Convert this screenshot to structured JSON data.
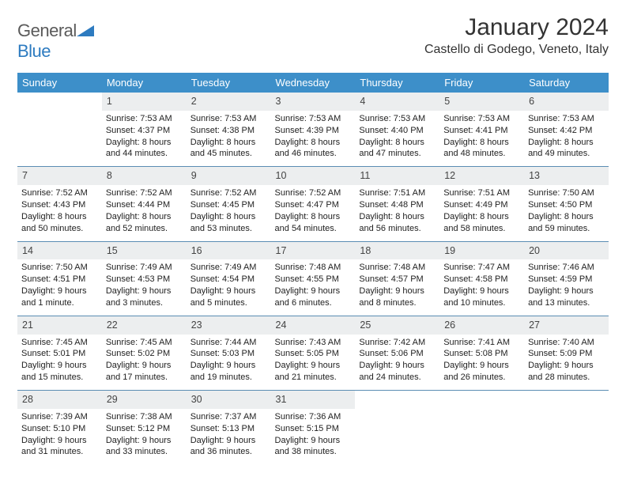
{
  "brand": {
    "name1": "General",
    "name2": "Blue"
  },
  "title": "January 2024",
  "location": "Castello di Godego, Veneto, Italy",
  "colors": {
    "header_bg": "#3d8fc9",
    "daynum_bg": "#eceeef",
    "rule": "#5b8db3"
  },
  "fonts": {
    "title_size": 30,
    "location_size": 16,
    "th_size": 13,
    "cell_size": 11
  },
  "days": [
    "Sunday",
    "Monday",
    "Tuesday",
    "Wednesday",
    "Thursday",
    "Friday",
    "Saturday"
  ],
  "weeks": [
    {
      "nums": [
        "",
        "1",
        "2",
        "3",
        "4",
        "5",
        "6"
      ],
      "cells": [
        null,
        {
          "sr": "Sunrise: 7:53 AM",
          "ss": "Sunset: 4:37 PM",
          "dl": "Daylight: 8 hours and 44 minutes."
        },
        {
          "sr": "Sunrise: 7:53 AM",
          "ss": "Sunset: 4:38 PM",
          "dl": "Daylight: 8 hours and 45 minutes."
        },
        {
          "sr": "Sunrise: 7:53 AM",
          "ss": "Sunset: 4:39 PM",
          "dl": "Daylight: 8 hours and 46 minutes."
        },
        {
          "sr": "Sunrise: 7:53 AM",
          "ss": "Sunset: 4:40 PM",
          "dl": "Daylight: 8 hours and 47 minutes."
        },
        {
          "sr": "Sunrise: 7:53 AM",
          "ss": "Sunset: 4:41 PM",
          "dl": "Daylight: 8 hours and 48 minutes."
        },
        {
          "sr": "Sunrise: 7:53 AM",
          "ss": "Sunset: 4:42 PM",
          "dl": "Daylight: 8 hours and 49 minutes."
        }
      ]
    },
    {
      "nums": [
        "7",
        "8",
        "9",
        "10",
        "11",
        "12",
        "13"
      ],
      "cells": [
        {
          "sr": "Sunrise: 7:52 AM",
          "ss": "Sunset: 4:43 PM",
          "dl": "Daylight: 8 hours and 50 minutes."
        },
        {
          "sr": "Sunrise: 7:52 AM",
          "ss": "Sunset: 4:44 PM",
          "dl": "Daylight: 8 hours and 52 minutes."
        },
        {
          "sr": "Sunrise: 7:52 AM",
          "ss": "Sunset: 4:45 PM",
          "dl": "Daylight: 8 hours and 53 minutes."
        },
        {
          "sr": "Sunrise: 7:52 AM",
          "ss": "Sunset: 4:47 PM",
          "dl": "Daylight: 8 hours and 54 minutes."
        },
        {
          "sr": "Sunrise: 7:51 AM",
          "ss": "Sunset: 4:48 PM",
          "dl": "Daylight: 8 hours and 56 minutes."
        },
        {
          "sr": "Sunrise: 7:51 AM",
          "ss": "Sunset: 4:49 PM",
          "dl": "Daylight: 8 hours and 58 minutes."
        },
        {
          "sr": "Sunrise: 7:50 AM",
          "ss": "Sunset: 4:50 PM",
          "dl": "Daylight: 8 hours and 59 minutes."
        }
      ]
    },
    {
      "nums": [
        "14",
        "15",
        "16",
        "17",
        "18",
        "19",
        "20"
      ],
      "cells": [
        {
          "sr": "Sunrise: 7:50 AM",
          "ss": "Sunset: 4:51 PM",
          "dl": "Daylight: 9 hours and 1 minute."
        },
        {
          "sr": "Sunrise: 7:49 AM",
          "ss": "Sunset: 4:53 PM",
          "dl": "Daylight: 9 hours and 3 minutes."
        },
        {
          "sr": "Sunrise: 7:49 AM",
          "ss": "Sunset: 4:54 PM",
          "dl": "Daylight: 9 hours and 5 minutes."
        },
        {
          "sr": "Sunrise: 7:48 AM",
          "ss": "Sunset: 4:55 PM",
          "dl": "Daylight: 9 hours and 6 minutes."
        },
        {
          "sr": "Sunrise: 7:48 AM",
          "ss": "Sunset: 4:57 PM",
          "dl": "Daylight: 9 hours and 8 minutes."
        },
        {
          "sr": "Sunrise: 7:47 AM",
          "ss": "Sunset: 4:58 PM",
          "dl": "Daylight: 9 hours and 10 minutes."
        },
        {
          "sr": "Sunrise: 7:46 AM",
          "ss": "Sunset: 4:59 PM",
          "dl": "Daylight: 9 hours and 13 minutes."
        }
      ]
    },
    {
      "nums": [
        "21",
        "22",
        "23",
        "24",
        "25",
        "26",
        "27"
      ],
      "cells": [
        {
          "sr": "Sunrise: 7:45 AM",
          "ss": "Sunset: 5:01 PM",
          "dl": "Daylight: 9 hours and 15 minutes."
        },
        {
          "sr": "Sunrise: 7:45 AM",
          "ss": "Sunset: 5:02 PM",
          "dl": "Daylight: 9 hours and 17 minutes."
        },
        {
          "sr": "Sunrise: 7:44 AM",
          "ss": "Sunset: 5:03 PM",
          "dl": "Daylight: 9 hours and 19 minutes."
        },
        {
          "sr": "Sunrise: 7:43 AM",
          "ss": "Sunset: 5:05 PM",
          "dl": "Daylight: 9 hours and 21 minutes."
        },
        {
          "sr": "Sunrise: 7:42 AM",
          "ss": "Sunset: 5:06 PM",
          "dl": "Daylight: 9 hours and 24 minutes."
        },
        {
          "sr": "Sunrise: 7:41 AM",
          "ss": "Sunset: 5:08 PM",
          "dl": "Daylight: 9 hours and 26 minutes."
        },
        {
          "sr": "Sunrise: 7:40 AM",
          "ss": "Sunset: 5:09 PM",
          "dl": "Daylight: 9 hours and 28 minutes."
        }
      ]
    },
    {
      "nums": [
        "28",
        "29",
        "30",
        "31",
        "",
        "",
        ""
      ],
      "cells": [
        {
          "sr": "Sunrise: 7:39 AM",
          "ss": "Sunset: 5:10 PM",
          "dl": "Daylight: 9 hours and 31 minutes."
        },
        {
          "sr": "Sunrise: 7:38 AM",
          "ss": "Sunset: 5:12 PM",
          "dl": "Daylight: 9 hours and 33 minutes."
        },
        {
          "sr": "Sunrise: 7:37 AM",
          "ss": "Sunset: 5:13 PM",
          "dl": "Daylight: 9 hours and 36 minutes."
        },
        {
          "sr": "Sunrise: 7:36 AM",
          "ss": "Sunset: 5:15 PM",
          "dl": "Daylight: 9 hours and 38 minutes."
        },
        null,
        null,
        null
      ]
    }
  ]
}
